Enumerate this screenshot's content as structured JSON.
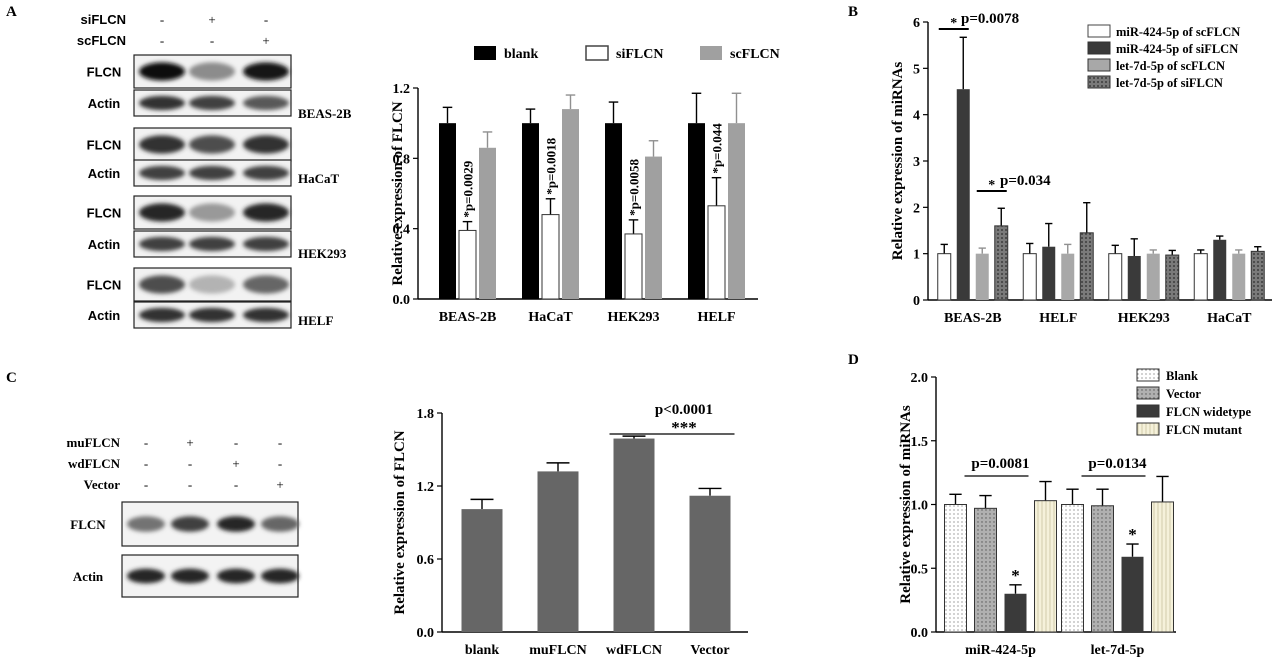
{
  "panels": {
    "A": "A",
    "B": "B",
    "C": "C",
    "D": "D"
  },
  "blotA": {
    "conditions": [
      {
        "label": "siFLCN",
        "marks": [
          "-",
          "+",
          "-"
        ]
      },
      {
        "label": "scFLCN",
        "marks": [
          "-",
          "-",
          "+"
        ]
      }
    ],
    "groups": [
      {
        "cell": "BEAS-2B",
        "rows": [
          "FLCN",
          "Actin"
        ],
        "intensity": [
          [
            0.95,
            0.45,
            0.9
          ],
          [
            0.8,
            0.75,
            0.65
          ]
        ]
      },
      {
        "cell": "HaCaT",
        "rows": [
          "FLCN",
          "Actin"
        ],
        "intensity": [
          [
            0.8,
            0.7,
            0.8
          ],
          [
            0.75,
            0.75,
            0.75
          ]
        ]
      },
      {
        "cell": "HEK293",
        "rows": [
          "FLCN",
          "Actin"
        ],
        "intensity": [
          [
            0.85,
            0.4,
            0.85
          ],
          [
            0.75,
            0.75,
            0.75
          ]
        ]
      },
      {
        "cell": "HELF",
        "rows": [
          "FLCN",
          "Actin"
        ],
        "intensity": [
          [
            0.7,
            0.3,
            0.6
          ],
          [
            0.8,
            0.8,
            0.8
          ]
        ]
      }
    ]
  },
  "blotC": {
    "conditions": [
      {
        "label": "muFLCN",
        "marks": [
          "-",
          "+",
          "-",
          "-"
        ]
      },
      {
        "label": "wdFLCN",
        "marks": [
          "-",
          "-",
          "+",
          "-"
        ]
      },
      {
        "label": "Vector",
        "marks": [
          "-",
          "-",
          "-",
          "+"
        ]
      }
    ],
    "rows": [
      "FLCN",
      "Actin"
    ],
    "intensity": [
      [
        0.55,
        0.75,
        0.85,
        0.6
      ],
      [
        0.85,
        0.85,
        0.85,
        0.85
      ]
    ]
  },
  "chart_data": [
    {
      "panel": "A",
      "type": "bar",
      "ylabel": "Relative expression of FLCN",
      "ylim": [
        0,
        1.2
      ],
      "yticks": [
        "0.0",
        "0.4",
        "0.8",
        "1.2"
      ],
      "categories": [
        "BEAS-2B",
        "HaCaT",
        "HEK293",
        "HELF"
      ],
      "legend_position": "top",
      "series": [
        {
          "name": "blank",
          "color": "#000000",
          "fill": "solid",
          "values": [
            1.0,
            1.0,
            1.0,
            1.0
          ],
          "errors": [
            0.09,
            0.08,
            0.12,
            0.17
          ]
        },
        {
          "name": "siFLCN",
          "color": "#ffffff",
          "fill": "open",
          "values": [
            0.39,
            0.48,
            0.37,
            0.53
          ],
          "errors": [
            0.05,
            0.09,
            0.08,
            0.16
          ]
        },
        {
          "name": "scFLCN",
          "color": "#a0a0a0",
          "fill": "solid",
          "values": [
            0.86,
            1.08,
            0.81,
            1.0
          ],
          "errors": [
            0.09,
            0.08,
            0.09,
            0.17
          ]
        }
      ],
      "annotations": [
        "*p=0.0029",
        "*p=0.0018",
        "*p=0.0058",
        "*p=0.044"
      ]
    },
    {
      "panel": "B",
      "type": "bar",
      "ylabel": "Relative expression of miRNAs",
      "ylim": [
        0,
        6
      ],
      "yticks": [
        "0",
        "1",
        "2",
        "3",
        "4",
        "5",
        "6"
      ],
      "categories": [
        "BEAS-2B",
        "HELF",
        "HEK293",
        "HaCaT"
      ],
      "legend_position": "top-right",
      "series": [
        {
          "name": "miR-424-5p of scFLCN",
          "color": "#ffffff",
          "fill": "open",
          "values": [
            1.0,
            1.0,
            1.0,
            1.0
          ],
          "errors": [
            0.2,
            0.22,
            0.18,
            0.08
          ]
        },
        {
          "name": "miR-424-5p of siFLCN",
          "color": "#3a3a3a",
          "fill": "solid",
          "values": [
            4.55,
            1.15,
            0.95,
            1.3
          ],
          "errors": [
            1.12,
            0.5,
            0.37,
            0.08
          ]
        },
        {
          "name": "let-7d-5p of scFLCN",
          "color": "#a8a8a8",
          "fill": "solid",
          "values": [
            1.0,
            1.0,
            1.0,
            1.0
          ],
          "errors": [
            0.12,
            0.2,
            0.08,
            0.08
          ]
        },
        {
          "name": "let-7d-5p of siFLCN",
          "color": "#6a6a6a",
          "fill": "dots",
          "values": [
            1.6,
            1.45,
            0.97,
            1.05
          ],
          "errors": [
            0.38,
            0.65,
            0.1,
            0.1
          ]
        }
      ],
      "annotations": [
        {
          "star": "*",
          "text": "p=0.0078"
        },
        {
          "star": "*",
          "text": "p=0.034"
        }
      ]
    },
    {
      "panel": "C",
      "type": "bar",
      "ylabel": "Relative expression of FLCN",
      "ylim": [
        0,
        1.8
      ],
      "yticks": [
        "0.0",
        "0.6",
        "1.2",
        "1.8"
      ],
      "categories": [
        "blank",
        "muFLCN",
        "wdFLCN",
        "Vector"
      ],
      "series": [
        {
          "name": "",
          "color": "#666666",
          "fill": "solid",
          "values": [
            1.01,
            1.32,
            1.59,
            1.12
          ],
          "errors": [
            0.08,
            0.07,
            0.02,
            0.06
          ]
        }
      ],
      "annotations": [
        {
          "text": "p<0.0001",
          "stars": "***"
        }
      ]
    },
    {
      "panel": "D",
      "type": "bar",
      "ylabel": "Relative expression of miRNAs",
      "ylim": [
        0,
        2.0
      ],
      "yticks": [
        "0.0",
        "0.5",
        "1.0",
        "1.5",
        "2.0"
      ],
      "categories": [
        "miR-424-5p",
        "let-7d-5p"
      ],
      "legend_position": "top-right",
      "series": [
        {
          "name": "Blank",
          "color": "#ffffff",
          "fill": "dots",
          "values": [
            1.0,
            1.0
          ],
          "errors": [
            0.08,
            0.12
          ]
        },
        {
          "name": "Vector",
          "color": "#9a9a9a",
          "fill": "dots",
          "values": [
            0.97,
            0.99
          ],
          "errors": [
            0.1,
            0.13
          ]
        },
        {
          "name": "FLCN widetype",
          "color": "#3a3a3a",
          "fill": "solid",
          "values": [
            0.3,
            0.59
          ],
          "errors": [
            0.07,
            0.1
          ]
        },
        {
          "name": "FLCN mutant",
          "color": "#f3efd8",
          "fill": "lines",
          "values": [
            1.03,
            1.02
          ],
          "errors": [
            0.15,
            0.2
          ]
        }
      ],
      "annotations": [
        "p=0.0081",
        "p=0.0134",
        "*",
        "*"
      ]
    }
  ]
}
